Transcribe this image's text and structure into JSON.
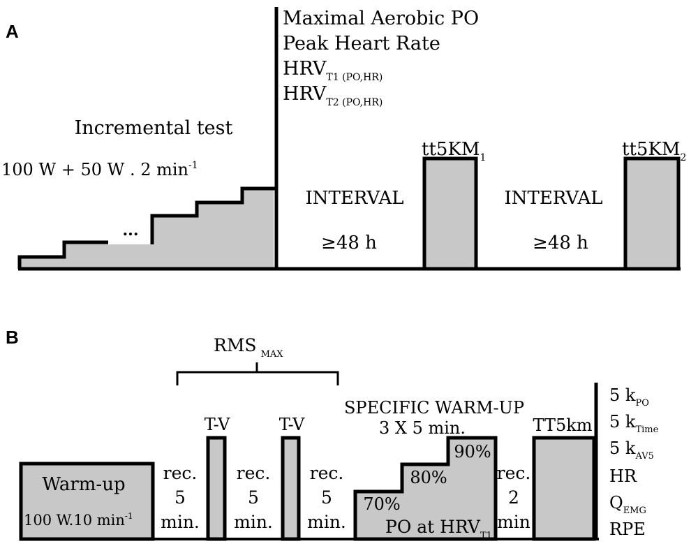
{
  "panel_a": {
    "label": "A",
    "incremental_title": "Incremental test",
    "protocol": {
      "base": "100 W + 50 W . 2 min",
      "exp": "-1"
    },
    "ellipsis": "...",
    "measures": [
      {
        "text": "Maximal Aerobic PO",
        "sub": ""
      },
      {
        "text": "Peak Heart Rate",
        "sub": ""
      },
      {
        "text": "HRV",
        "sub": "T1 (PO,HR)"
      },
      {
        "text": "HRV",
        "sub": "T2 (PO,HR)"
      }
    ],
    "interval_1": {
      "label": "INTERVAL",
      "duration": "≥48 h"
    },
    "tt_1": {
      "text": "tt5KM",
      "sub": "1"
    },
    "interval_2": {
      "label": "INTERVAL",
      "duration": "≥48 h"
    },
    "tt_2": {
      "text": "tt5KM",
      "sub": "2"
    }
  },
  "panel_b": {
    "label": "B",
    "rms": {
      "text": "RMS",
      "sub": "MAX"
    },
    "warmup": {
      "title": "Warm-up",
      "protocol_base": "100 W.10 min",
      "protocol_exp": "-1"
    },
    "recovery_1": [
      "rec.",
      "5",
      "min."
    ],
    "recovery_2": [
      "rec.",
      "5",
      "min."
    ],
    "recovery_3": [
      "rec.",
      "5",
      "min."
    ],
    "recovery_4": [
      "rec.",
      "2",
      "min"
    ],
    "tv_1": "T-V",
    "tv_2": "T-V",
    "specific_title": "SPECIFIC WARM-UP",
    "specific_detail": "3 X 5 min.",
    "steps": [
      "70%",
      "80%",
      "90%"
    ],
    "po_at": {
      "text": "PO at HRV",
      "sub": "T1"
    },
    "tt5km": "TT5km",
    "outcomes": [
      {
        "text": "5 k",
        "sub": "PO"
      },
      {
        "text": "5 k",
        "sub": "Time"
      },
      {
        "text": "5 k",
        "sub": "AV5"
      },
      {
        "text": "HR",
        "sub": ""
      },
      {
        "text": "Q",
        "sub": "EMG"
      },
      {
        "text": "RPE",
        "sub": ""
      }
    ]
  }
}
